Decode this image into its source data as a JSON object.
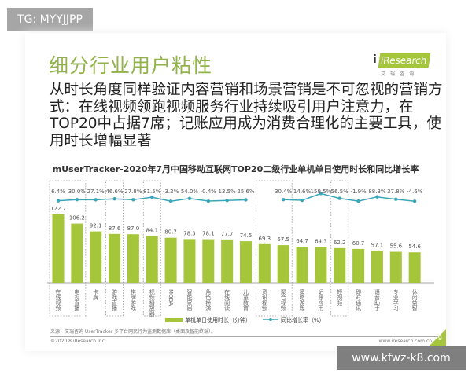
{
  "watermark_top": "TG: MYYJJPP",
  "watermark_bottom": "www.kfwz-k8.com",
  "slide": {
    "title": "细分行业用户粘性",
    "logo": {
      "brand": "iResearch",
      "cn": "艾瑞咨询"
    },
    "body": "从时长角度同样验证内容营销和场景营销是不可忽视的营销方式：在线视频领跑视频服务行业持续吸引用户注意力，在TOP20中占据7席；记账应用成为消费合理化的主要工具，使用时长增幅显著",
    "source": "来源：艾瑞咨询 UserTracker 多平台网民行为监测数据库（桌面及智能终端）。",
    "copyright": "©2020.8 iResearch Inc.",
    "url": "www.iresearch.com.cn",
    "page": "9"
  },
  "chart_data": {
    "type": "bar+line",
    "title": "mUserTracker-2020年7月中国移动互联网TOP20二级行业单机单日使用时长和同比增长率",
    "categories": [
      "在线视频",
      "电视直播",
      "卡牌",
      "游戏直播",
      "棋牌游戏",
      "视频播放器",
      "MOBA",
      "智能家居",
      "角色扮演",
      "在线阅读",
      "儿童教育",
      "资讯视频",
      "聚合视频",
      "策略游戏",
      "记账应用",
      "短视频",
      "即时通讯",
      "语音助手",
      "专业学习",
      "休闲益智"
    ],
    "series": [
      {
        "name": "单机单日使用时长（分钟）",
        "type": "bar",
        "color": "#a5c63a",
        "values": [
          122.7,
          106.2,
          92.1,
          87.6,
          87.0,
          84.1,
          80.7,
          78.3,
          78.1,
          77.7,
          74.5,
          69.3,
          67.5,
          64.7,
          64.3,
          62.2,
          60.7,
          57.1,
          55.6,
          54.6
        ]
      },
      {
        "name": "同比增长率（%）",
        "type": "line",
        "color": "#3aa6b9",
        "values": [
          6.4,
          30.0,
          27.1,
          46.6,
          27.8,
          81.5,
          -3.2,
          54.0,
          -0.4,
          13.5,
          25.6,
          null,
          30.4,
          14.6,
          159.5,
          56.5,
          -1.9,
          88.3,
          37.8,
          -4.6
        ]
      }
    ],
    "value_labels": {
      "bars": [
        "122.7",
        "106.2",
        "92.1",
        "87.6",
        "87.0",
        "84.1",
        "80.7",
        "78.3",
        "78.1",
        "77.7",
        "74.5",
        "69.3",
        "67.5",
        "64.7",
        "64.3",
        "62.2",
        "60.7",
        "57.1",
        "55.6",
        "54.6"
      ],
      "line": [
        "6.4%",
        "30.0%",
        "27.1%",
        "46.6%",
        "27.8%",
        "81.5%",
        "-3.2%",
        "54.0%",
        "-0.4%",
        "13.5%",
        "25.6%",
        "",
        "30.4%",
        "14.6%",
        "159.5%",
        "56.5%",
        "-1.9%",
        "88.3%",
        "37.8%",
        "-4.6%"
      ]
    },
    "highlighted_groups": [
      [
        0,
        1
      ],
      [
        3
      ],
      [
        5
      ],
      [
        11,
        12
      ],
      [
        15
      ]
    ],
    "legend": "bottom-right"
  }
}
